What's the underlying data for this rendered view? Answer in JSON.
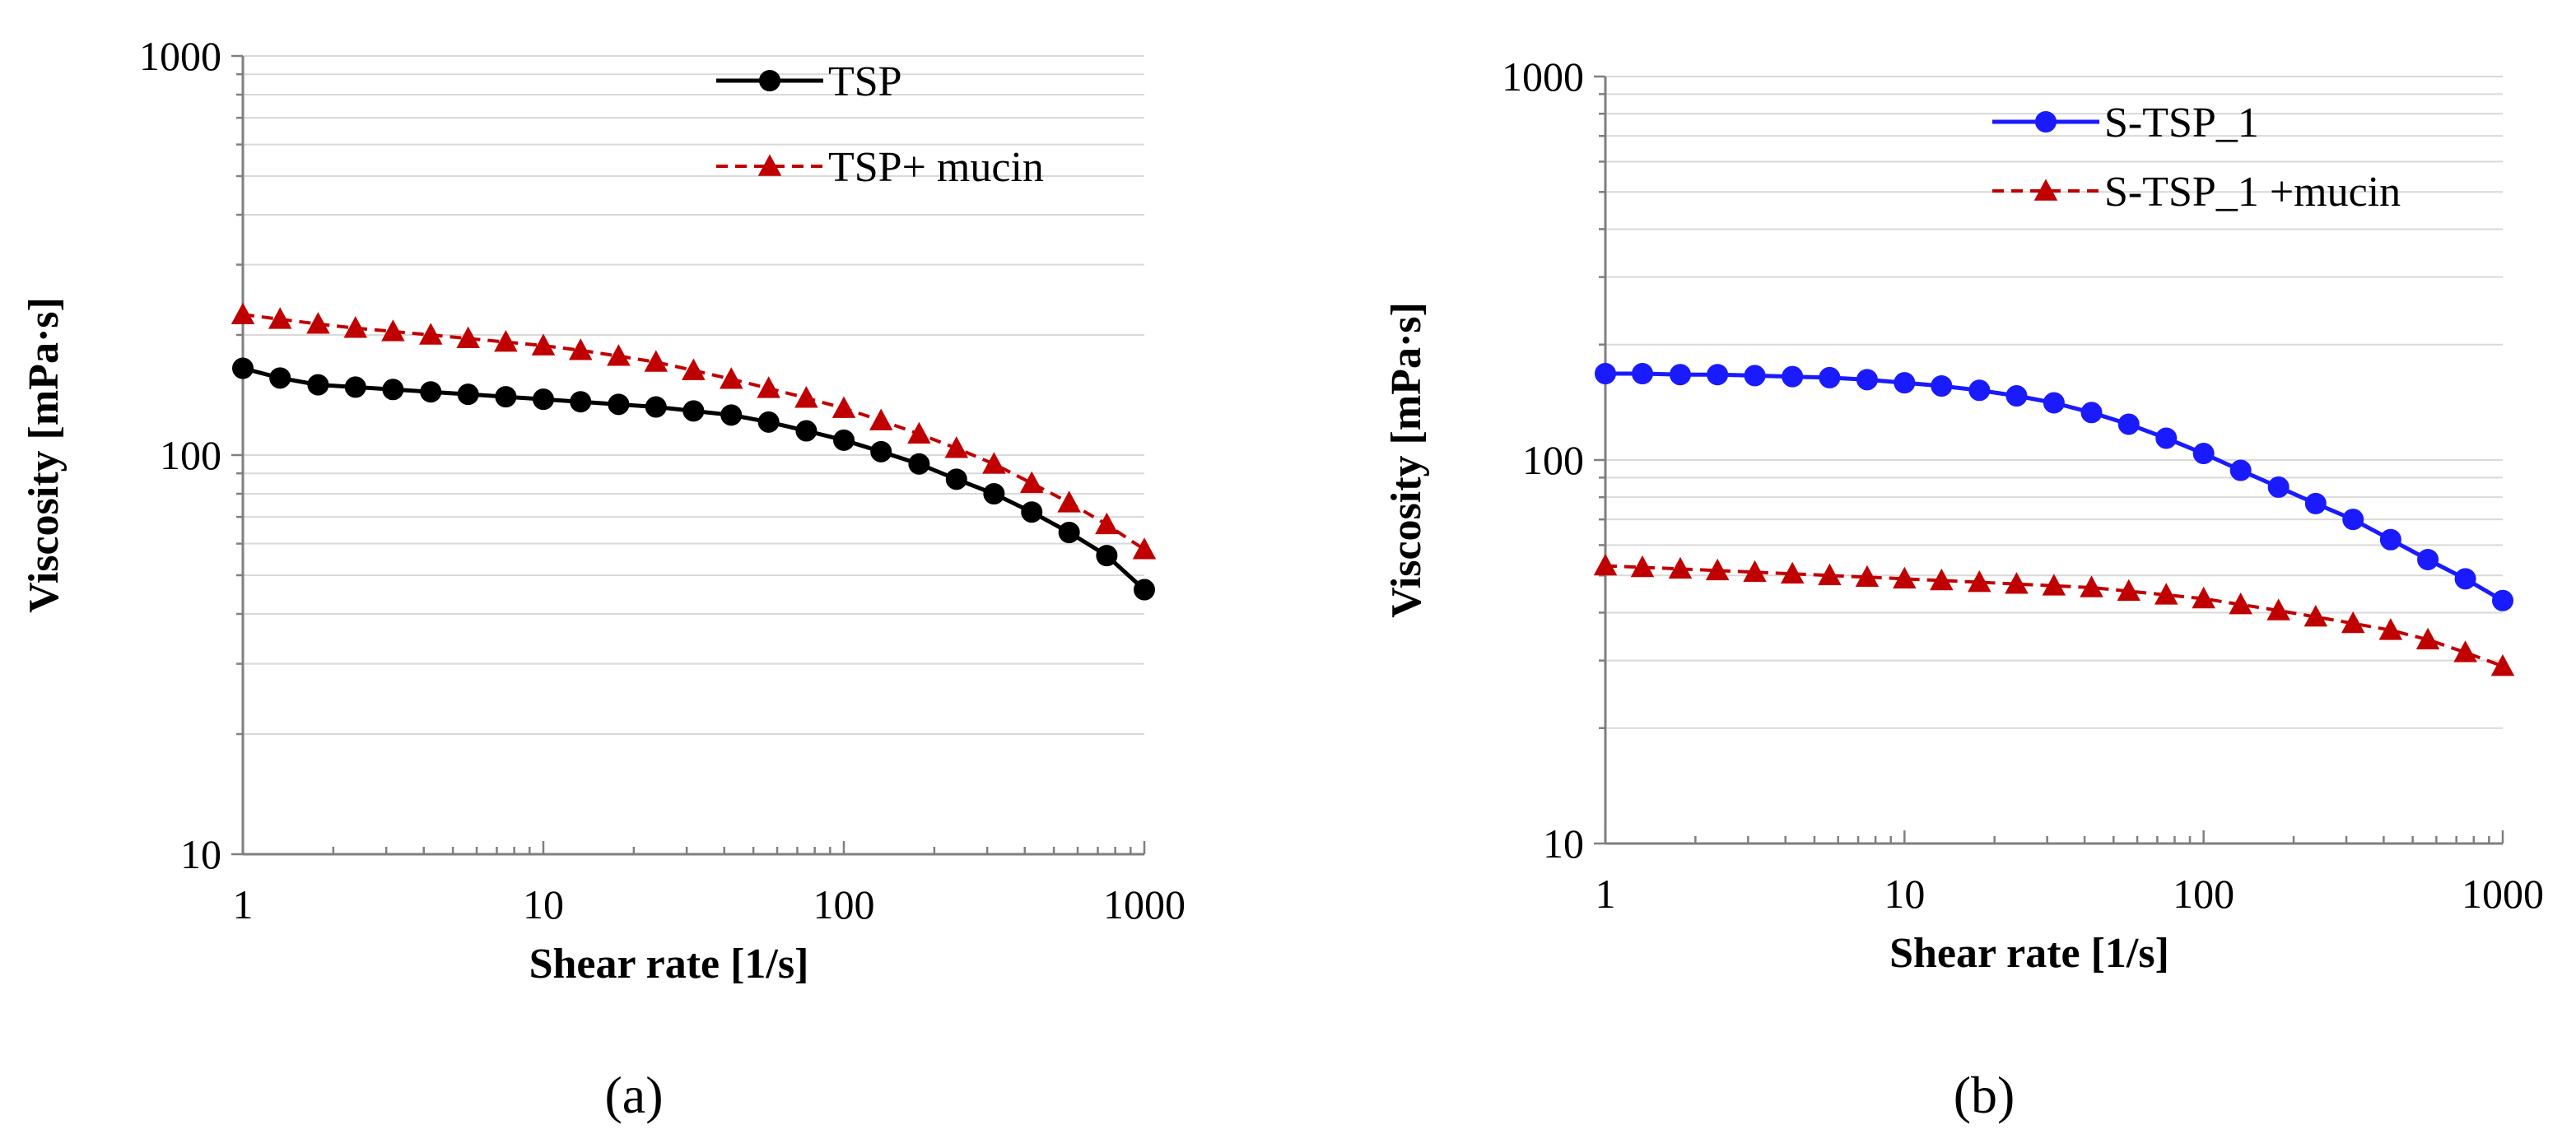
{
  "chart_data": [
    {
      "panel": "(a)",
      "type": "line",
      "xscale": "log",
      "yscale": "log",
      "xlabel": "Shear rate [1/s]",
      "ylabel": "Viscosity [mPa·s]",
      "xlim": [
        1,
        1000
      ],
      "ylim": [
        10,
        1000
      ],
      "xticks": [
        "1",
        "10",
        "100",
        "1000"
      ],
      "yticks": [
        "10",
        "100",
        "1000"
      ],
      "grid": "horizontal",
      "legend": "top-right",
      "x": [
        1,
        1.33,
        1.78,
        2.37,
        3.16,
        4.22,
        5.62,
        7.5,
        10,
        13.3,
        17.8,
        23.7,
        31.6,
        42.2,
        56.2,
        75,
        100,
        133,
        178,
        237,
        316,
        422,
        562,
        750,
        1000
      ],
      "series": [
        {
          "name": "TSP",
          "color": "#000000",
          "marker": "circle",
          "linestyle": "solid",
          "values": [
            165,
            156,
            150,
            148,
            146,
            144,
            142,
            140,
            138,
            136,
            134,
            132,
            129,
            126,
            121,
            115,
            109,
            102,
            95,
            87,
            80,
            72,
            64,
            56,
            46
          ]
        },
        {
          "name": "TSP+ mucin",
          "color": "#c00000",
          "marker": "triangle",
          "linestyle": "dashed",
          "values": [
            225,
            219,
            213,
            208,
            204,
            200,
            196,
            192,
            188,
            183,
            177,
            171,
            163,
            155,
            147,
            139,
            131,
            122,
            113,
            104,
            95,
            85,
            76,
            67,
            58
          ]
        }
      ]
    },
    {
      "panel": "(b)",
      "type": "line",
      "xscale": "log",
      "yscale": "log",
      "xlabel": "Shear rate [1/s]",
      "ylabel": "Viscosity [mPa·s]",
      "xlim": [
        1,
        1000
      ],
      "ylim": [
        10,
        1000
      ],
      "xticks": [
        "1",
        "10",
        "100",
        "1000"
      ],
      "yticks": [
        "10",
        "100",
        "1000"
      ],
      "grid": "horizontal",
      "legend": "top-right",
      "x": [
        1,
        1.33,
        1.78,
        2.37,
        3.16,
        4.22,
        5.62,
        7.5,
        10,
        13.3,
        17.8,
        23.7,
        31.6,
        42.2,
        56.2,
        75,
        100,
        133,
        178,
        237,
        316,
        422,
        562,
        750,
        1000
      ],
      "series": [
        {
          "name": "S-TSP_1",
          "color": "#1a1aff",
          "marker": "circle",
          "linestyle": "solid",
          "values": [
            168,
            168,
            167,
            167,
            166,
            165,
            164,
            162,
            159,
            156,
            152,
            147,
            141,
            133,
            124,
            114,
            104,
            94,
            85,
            77,
            70,
            62,
            55,
            49,
            43
          ]
        },
        {
          "name": "S-TSP_1 +mucin",
          "color": "#c00000",
          "marker": "triangle",
          "linestyle": "dashed",
          "values": [
            53,
            52.5,
            52,
            51.5,
            51,
            50.5,
            50,
            49.5,
            49,
            48.5,
            48,
            47.5,
            47,
            46.5,
            45.5,
            44.5,
            43.5,
            42,
            40.5,
            39,
            37.5,
            36,
            34,
            31.5,
            29
          ]
        }
      ]
    }
  ]
}
